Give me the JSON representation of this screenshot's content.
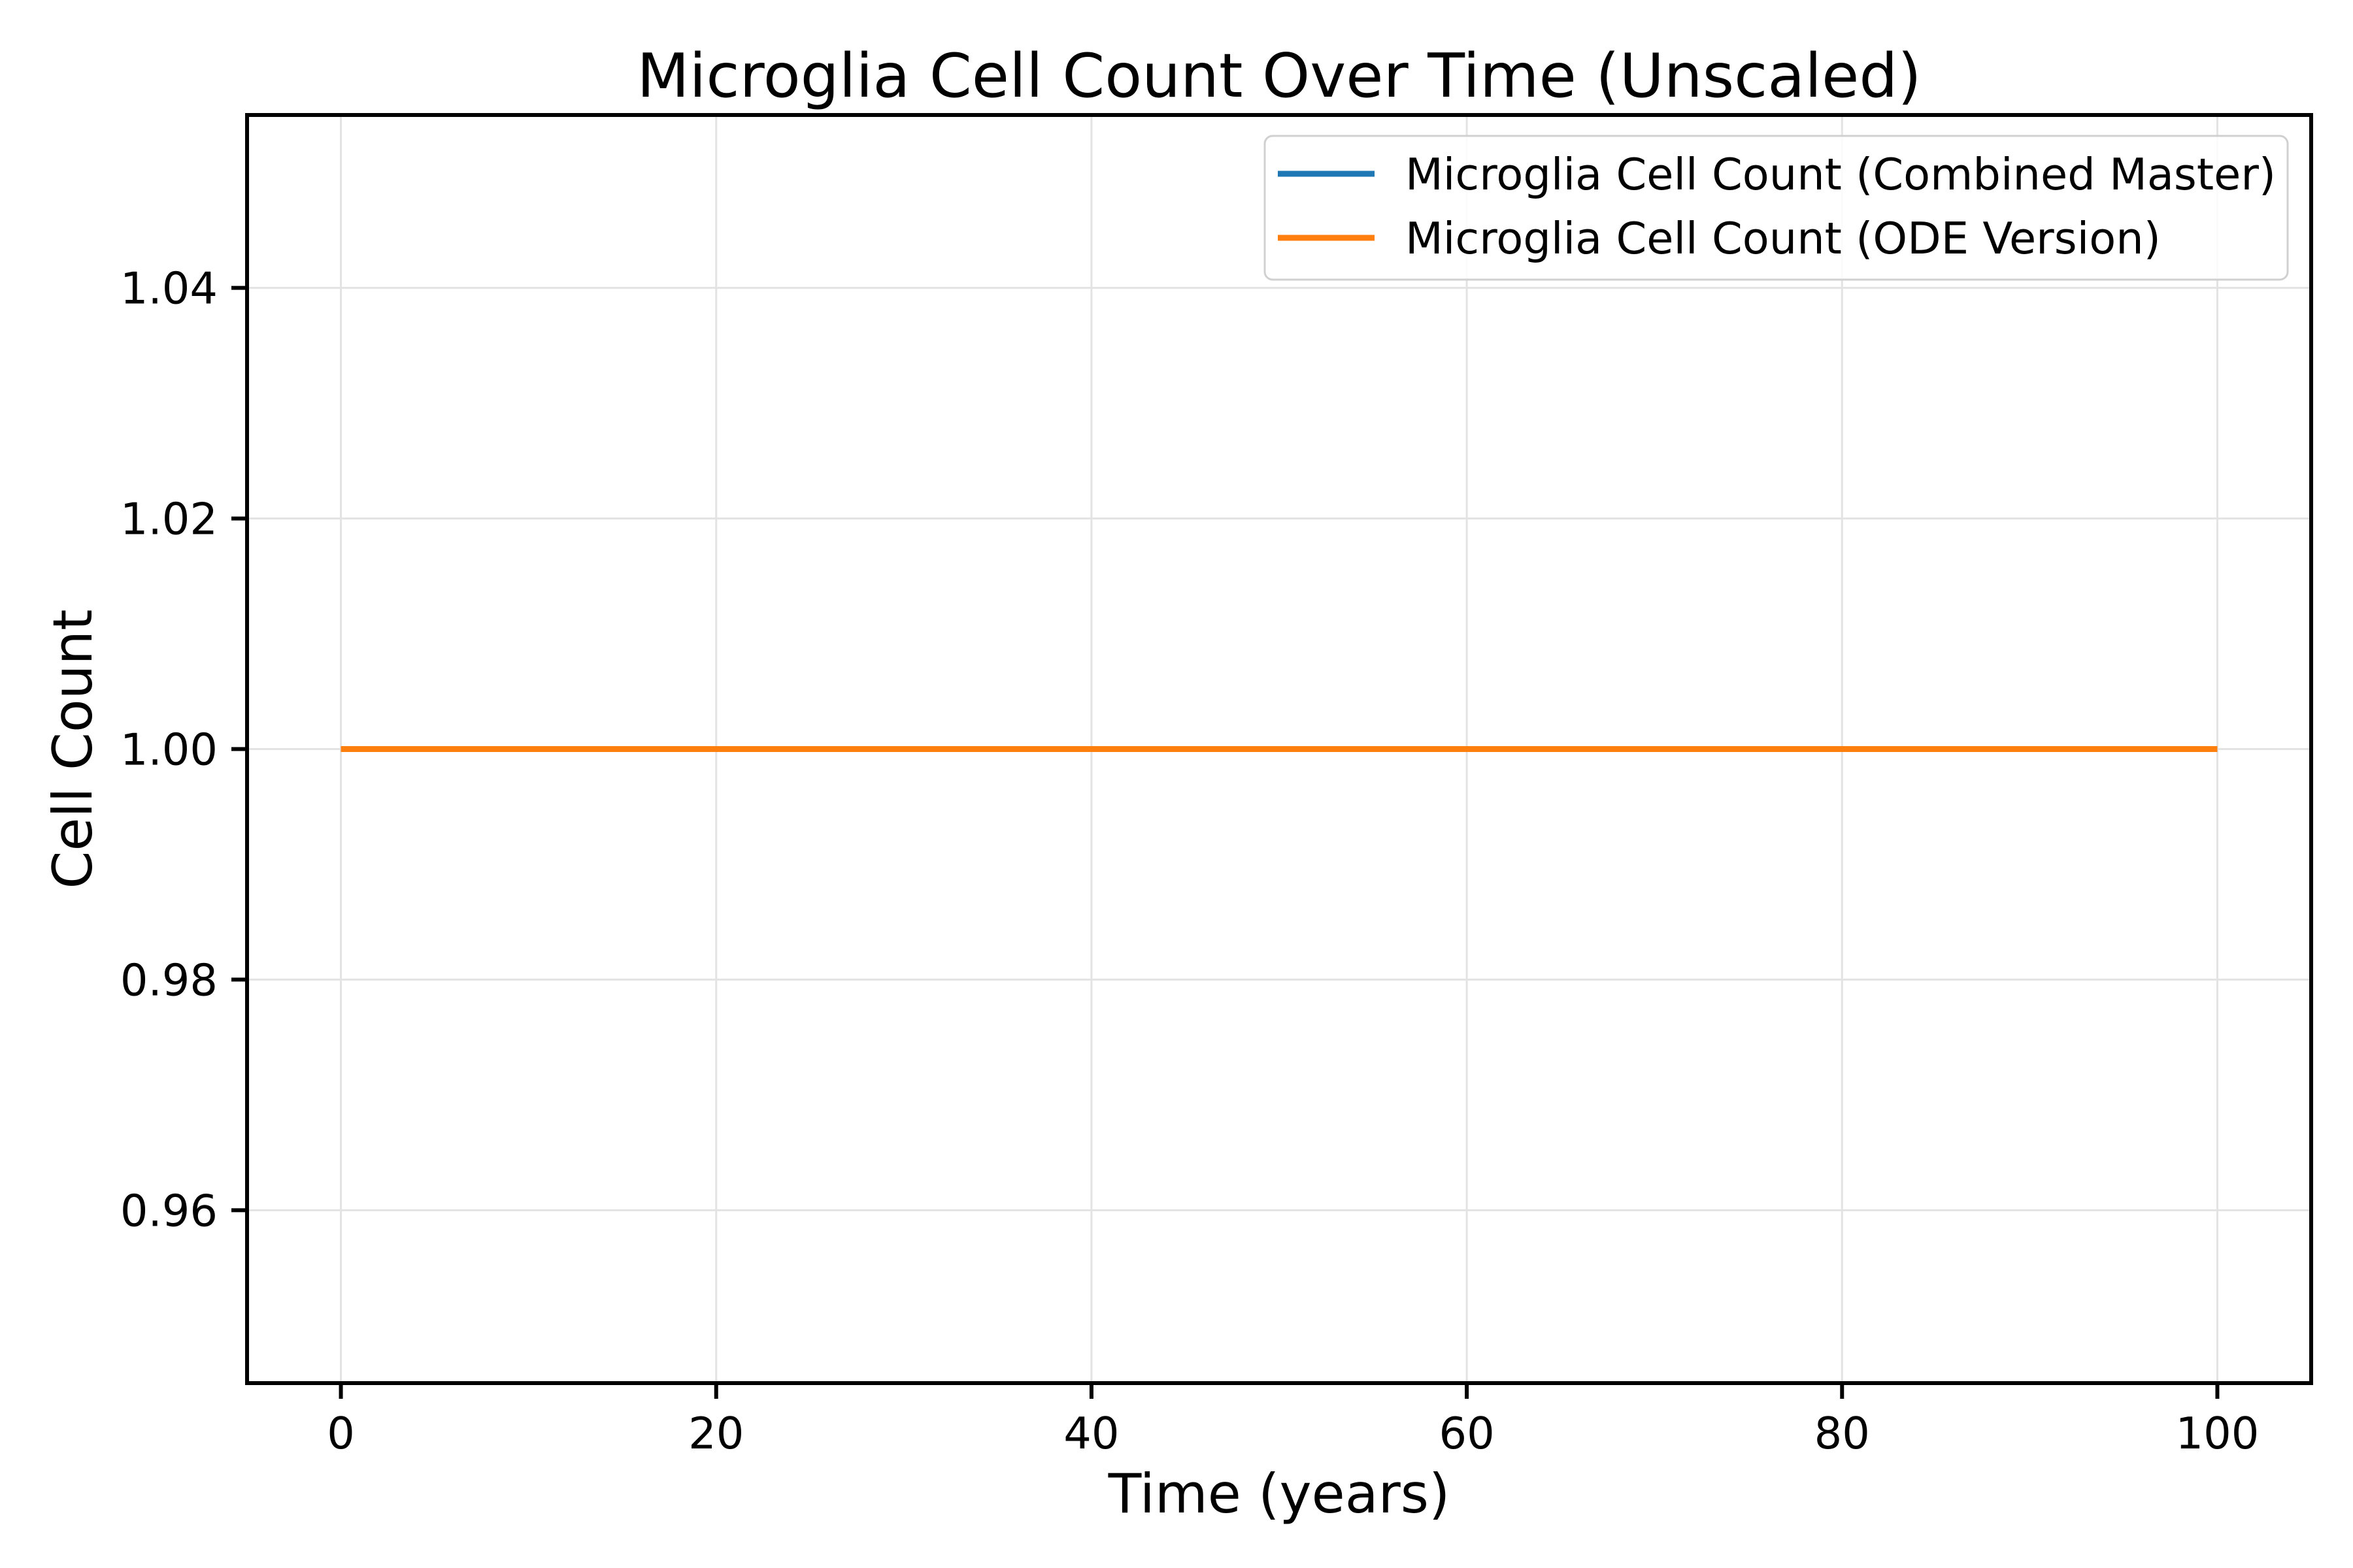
{
  "chart_data": {
    "type": "line",
    "title": "Microglia Cell Count Over Time (Unscaled)",
    "xlabel": "Time (years)",
    "ylabel": "Cell Count",
    "xlim": [
      -5,
      105
    ],
    "ylim": [
      0.945,
      1.055
    ],
    "xticks": [
      0,
      20,
      40,
      60,
      80,
      100
    ],
    "xtick_labels": [
      "0",
      "20",
      "40",
      "60",
      "80",
      "100"
    ],
    "yticks": [
      0.96,
      0.98,
      1.0,
      1.02,
      1.04
    ],
    "ytick_labels": [
      "0.96",
      "0.98",
      "1.00",
      "1.02",
      "1.04"
    ],
    "grid": true,
    "legend_position": "top-right",
    "series": [
      {
        "name": "Microglia Cell Count (Combined Master)",
        "color": "#1f77b4",
        "x": [
          0,
          100
        ],
        "y": [
          1.0,
          1.0
        ]
      },
      {
        "name": "Microglia Cell Count (ODE Version)",
        "color": "#ff7f0e",
        "x": [
          0,
          100
        ],
        "y": [
          1.0,
          1.0
        ]
      }
    ]
  }
}
